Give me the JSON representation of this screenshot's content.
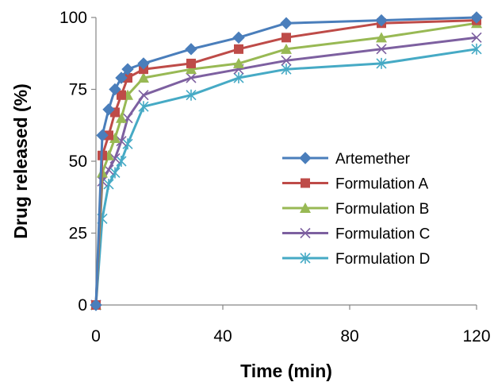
{
  "chart_data": {
    "type": "line",
    "title": "",
    "xlabel": "Time (min)",
    "ylabel": "Drug released (%)",
    "xlim": [
      0,
      120
    ],
    "ylim": [
      0,
      100
    ],
    "xticks": [
      0,
      40,
      80,
      120
    ],
    "yticks": [
      0,
      25,
      50,
      75,
      100
    ],
    "xtick_labels": [
      "0",
      "40",
      "80",
      "120"
    ],
    "ytick_labels": [
      "0",
      "25",
      "50",
      "75",
      "100"
    ],
    "grid": false,
    "legend_position": "right-center",
    "x": [
      0,
      2,
      4,
      6,
      8,
      10,
      15,
      30,
      45,
      60,
      90,
      120
    ],
    "series": [
      {
        "name": "Artemether",
        "color": "#4A7EBB",
        "marker": "diamond",
        "values": [
          0,
          59,
          68,
          75,
          79,
          82,
          84,
          89,
          93,
          98,
          99,
          100
        ]
      },
      {
        "name": "Formulation A",
        "color": "#BE4B48",
        "marker": "square",
        "values": [
          0,
          52,
          59,
          67,
          73,
          79,
          82,
          84,
          89,
          93,
          98,
          99
        ]
      },
      {
        "name": "Formulation B",
        "color": "#98B954",
        "marker": "triangle",
        "values": [
          0,
          46,
          52,
          58,
          65,
          73,
          79,
          82,
          84,
          89,
          93,
          98
        ]
      },
      {
        "name": "Formulation C",
        "color": "#7D60A0",
        "marker": "x",
        "values": [
          0,
          43,
          47,
          51,
          57,
          65,
          73,
          79,
          82,
          85,
          89,
          93
        ]
      },
      {
        "name": "Formulation D",
        "color": "#46AAC5",
        "marker": "star",
        "values": [
          0,
          30,
          42,
          46,
          50,
          56,
          69,
          73,
          79,
          82,
          84,
          89
        ]
      }
    ]
  }
}
